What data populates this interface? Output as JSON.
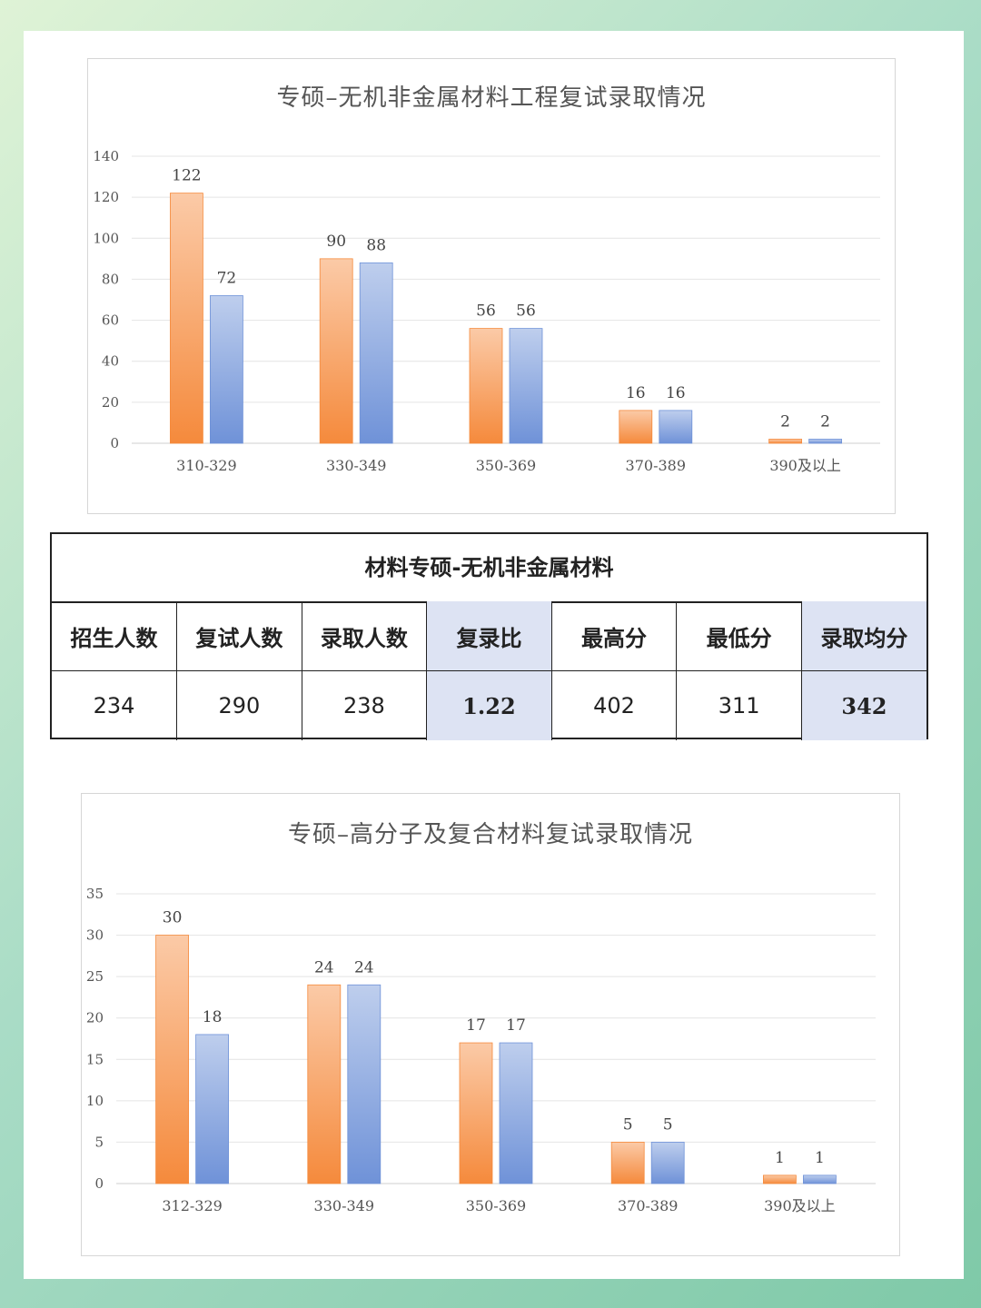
{
  "chart_data": [
    {
      "type": "bar",
      "title": "专硕–无机非金属材料工程复试录取情况",
      "categories": [
        "310-329",
        "330-349",
        "350-369",
        "370-389",
        "390及以上"
      ],
      "series": [
        {
          "color": "#f58a3c",
          "values": [
            122,
            90,
            56,
            16,
            2
          ]
        },
        {
          "color": "#6f92d8",
          "values": [
            72,
            88,
            56,
            16,
            2
          ]
        }
      ],
      "ylim": [
        0,
        140
      ],
      "yticks": [
        0,
        20,
        40,
        60,
        80,
        100,
        120,
        140
      ],
      "grid": true
    },
    {
      "type": "bar",
      "title": "专硕–高分子及复合材料复试录取情况",
      "categories": [
        "312-329",
        "330-349",
        "350-369",
        "370-389",
        "390及以上"
      ],
      "series": [
        {
          "color": "#f58a3c",
          "values": [
            30,
            24,
            17,
            5,
            1
          ]
        },
        {
          "color": "#6f92d8",
          "values": [
            18,
            24,
            17,
            5,
            1
          ]
        }
      ],
      "ylim": [
        0,
        35
      ],
      "yticks": [
        0,
        5,
        10,
        15,
        20,
        25,
        30,
        35
      ],
      "grid": true
    }
  ],
  "stats_table": {
    "title": "材料专硕-无机非金属材料",
    "headers": [
      "招生人数",
      "复试人数",
      "录取人数",
      "复录比",
      "最高分",
      "最低分",
      "录取均分"
    ],
    "values": [
      "234",
      "290",
      "238",
      "1.22",
      "402",
      "311",
      "342"
    ],
    "highlight_color": "#dde3f3",
    "emphasis_color": "#e4202a"
  }
}
